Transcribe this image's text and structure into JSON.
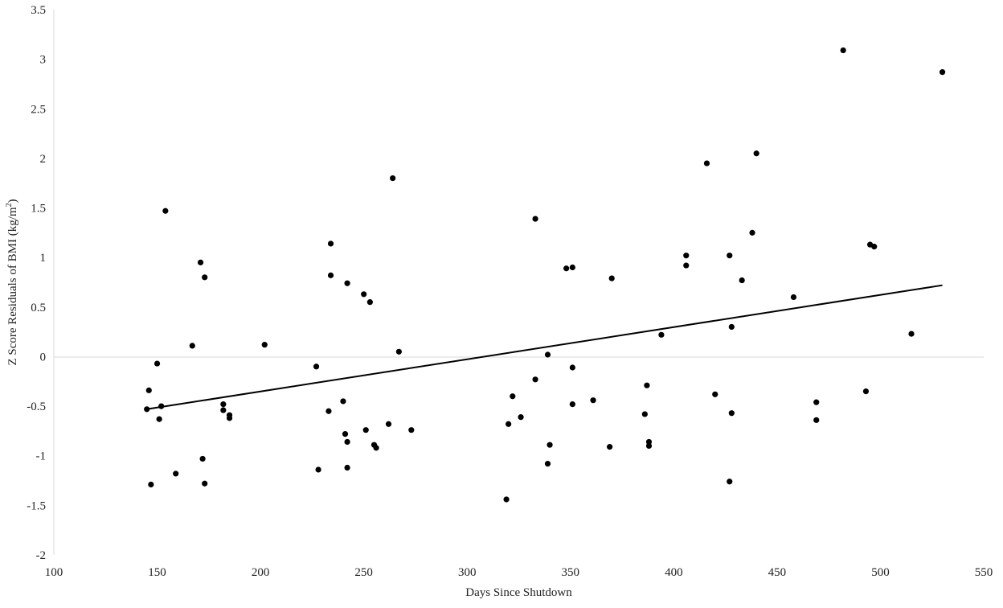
{
  "chart_data": {
    "type": "scatter",
    "title": "",
    "xlabel": "Days Since Shutdown",
    "ylabel_main": "Z Score Residuals  of BMI (kg/m",
    "ylabel_sup": "2",
    "ylabel_close": ")",
    "xlim": [
      100,
      550
    ],
    "ylim": [
      -2,
      3.5
    ],
    "xticks": [
      "100",
      "150",
      "200",
      "250",
      "300",
      "350",
      "400",
      "450",
      "500",
      "550"
    ],
    "yticks": [
      "-2",
      "-1.5",
      "-1",
      "-0.5",
      "0",
      "0.5",
      "1",
      "1.5",
      "2",
      "2.5",
      "3",
      "3.5"
    ],
    "zero_line": true,
    "grid": false,
    "legend": "none",
    "point_color": "#000000",
    "trendline": {
      "x": [
        145,
        530
      ],
      "y": [
        -0.53,
        0.72
      ],
      "color": "#000000"
    },
    "points": [
      {
        "x": 145,
        "y": -0.53
      },
      {
        "x": 146,
        "y": -0.34
      },
      {
        "x": 147,
        "y": -1.29
      },
      {
        "x": 150,
        "y": -0.07
      },
      {
        "x": 151,
        "y": -0.63
      },
      {
        "x": 152,
        "y": -0.5
      },
      {
        "x": 154,
        "y": 1.47
      },
      {
        "x": 159,
        "y": -1.18
      },
      {
        "x": 167,
        "y": 0.11
      },
      {
        "x": 171,
        "y": 0.95
      },
      {
        "x": 172,
        "y": -1.03
      },
      {
        "x": 173,
        "y": 0.8
      },
      {
        "x": 173,
        "y": -1.28
      },
      {
        "x": 182,
        "y": -0.48
      },
      {
        "x": 182,
        "y": -0.54
      },
      {
        "x": 185,
        "y": -0.59
      },
      {
        "x": 185,
        "y": -0.62
      },
      {
        "x": 202,
        "y": 0.12
      },
      {
        "x": 227,
        "y": -0.1
      },
      {
        "x": 228,
        "y": -1.14
      },
      {
        "x": 233,
        "y": -0.55
      },
      {
        "x": 234,
        "y": 1.14
      },
      {
        "x": 234,
        "y": 0.82
      },
      {
        "x": 240,
        "y": -0.45
      },
      {
        "x": 241,
        "y": -0.78
      },
      {
        "x": 242,
        "y": 0.74
      },
      {
        "x": 242,
        "y": -0.86
      },
      {
        "x": 242,
        "y": -1.12
      },
      {
        "x": 250,
        "y": 0.63
      },
      {
        "x": 251,
        "y": -0.74
      },
      {
        "x": 253,
        "y": 0.55
      },
      {
        "x": 255,
        "y": -0.89
      },
      {
        "x": 256,
        "y": -0.92
      },
      {
        "x": 262,
        "y": -0.68
      },
      {
        "x": 264,
        "y": 1.8
      },
      {
        "x": 267,
        "y": 0.05
      },
      {
        "x": 273,
        "y": -0.74
      },
      {
        "x": 319,
        "y": -1.44
      },
      {
        "x": 320,
        "y": -0.68
      },
      {
        "x": 322,
        "y": -0.4
      },
      {
        "x": 326,
        "y": -0.61
      },
      {
        "x": 333,
        "y": 1.39
      },
      {
        "x": 333,
        "y": -0.23
      },
      {
        "x": 339,
        "y": 0.02
      },
      {
        "x": 339,
        "y": -1.08
      },
      {
        "x": 340,
        "y": -0.89
      },
      {
        "x": 348,
        "y": 0.89
      },
      {
        "x": 351,
        "y": 0.9
      },
      {
        "x": 351,
        "y": -0.11
      },
      {
        "x": 351,
        "y": -0.48
      },
      {
        "x": 361,
        "y": -0.44
      },
      {
        "x": 369,
        "y": -0.91
      },
      {
        "x": 370,
        "y": 0.79
      },
      {
        "x": 386,
        "y": -0.58
      },
      {
        "x": 387,
        "y": -0.29
      },
      {
        "x": 388,
        "y": -0.86
      },
      {
        "x": 388,
        "y": -0.9
      },
      {
        "x": 394,
        "y": 0.22
      },
      {
        "x": 406,
        "y": 1.02
      },
      {
        "x": 406,
        "y": 0.92
      },
      {
        "x": 416,
        "y": 1.95
      },
      {
        "x": 420,
        "y": -0.38
      },
      {
        "x": 427,
        "y": 1.02
      },
      {
        "x": 427,
        "y": -1.26
      },
      {
        "x": 428,
        "y": 0.3
      },
      {
        "x": 428,
        "y": -0.57
      },
      {
        "x": 433,
        "y": 0.77
      },
      {
        "x": 438,
        "y": 1.25
      },
      {
        "x": 440,
        "y": 2.05
      },
      {
        "x": 458,
        "y": 0.6
      },
      {
        "x": 469,
        "y": -0.46
      },
      {
        "x": 469,
        "y": -0.64
      },
      {
        "x": 482,
        "y": 3.09
      },
      {
        "x": 493,
        "y": -0.35
      },
      {
        "x": 495,
        "y": 1.13
      },
      {
        "x": 497,
        "y": 1.11
      },
      {
        "x": 515,
        "y": 0.23
      },
      {
        "x": 530,
        "y": 2.87
      }
    ]
  }
}
